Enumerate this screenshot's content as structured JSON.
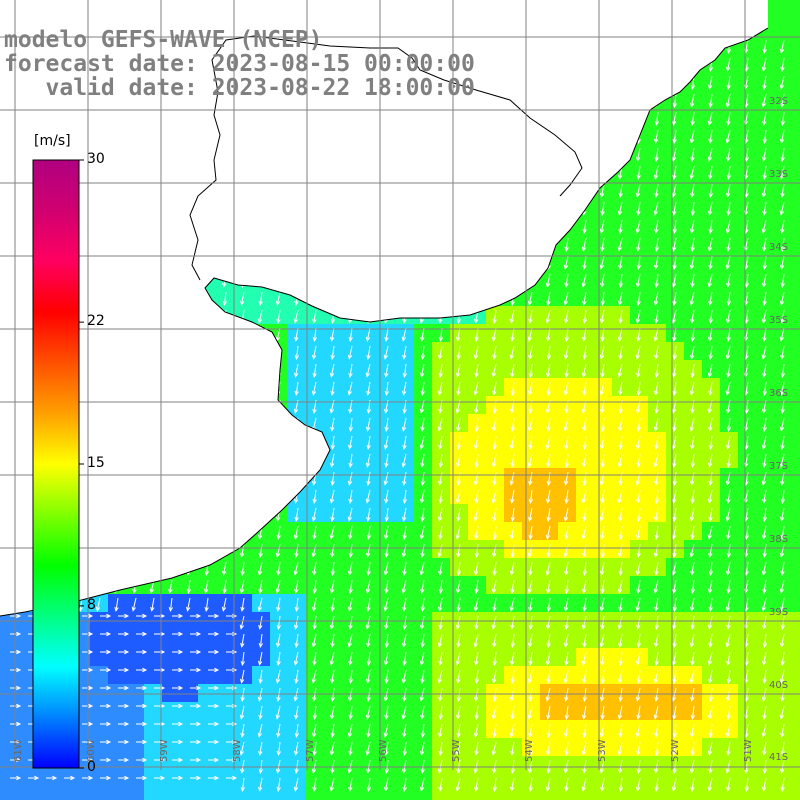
{
  "title": {
    "line1": "modelo GEFS-WAVE (NCEP)",
    "line2": "forecast date: 2023-08-15 00:00:00",
    "line3": "   valid date: 2023-08-22 18:00:00"
  },
  "colorbar": {
    "unit": "[m/s]",
    "ticks": [
      "30",
      "22",
      "15",
      "8",
      "0"
    ],
    "tick_values": [
      30,
      22,
      15,
      8,
      0
    ],
    "colors": [
      "#0000ff",
      "#0080ff",
      "#00ffff",
      "#00ff80",
      "#00ff00",
      "#80ff00",
      "#ffff00",
      "#ffa000",
      "#ff5000",
      "#ff0000",
      "#ff0060",
      "#d00070",
      "#b00080"
    ]
  },
  "map": {
    "lon_labels": [
      "61W",
      "60W",
      "59W",
      "58W",
      "57W",
      "56W",
      "55W",
      "54W",
      "53W",
      "52W",
      "51W"
    ],
    "lat_labels": [
      "32S",
      "33S",
      "34S",
      "35S",
      "36S",
      "37S",
      "38S",
      "39S",
      "40S",
      "41S"
    ],
    "ocean_colors": {
      "deep_blue": "#1f5cff",
      "blue": "#2f8cff",
      "cyan": "#22d8ff",
      "aqua": "#22ffb0",
      "green": "#22ff22",
      "yellow_green": "#a8ff00",
      "yellow": "#ffff00",
      "orange": "#ffc000"
    },
    "wind_direction": "south-southwest, turning east near the coast",
    "arrow_color": "#ffffff",
    "grid_color": "#808080",
    "land_color": "#ffffff",
    "coastline_color": "#000000"
  }
}
